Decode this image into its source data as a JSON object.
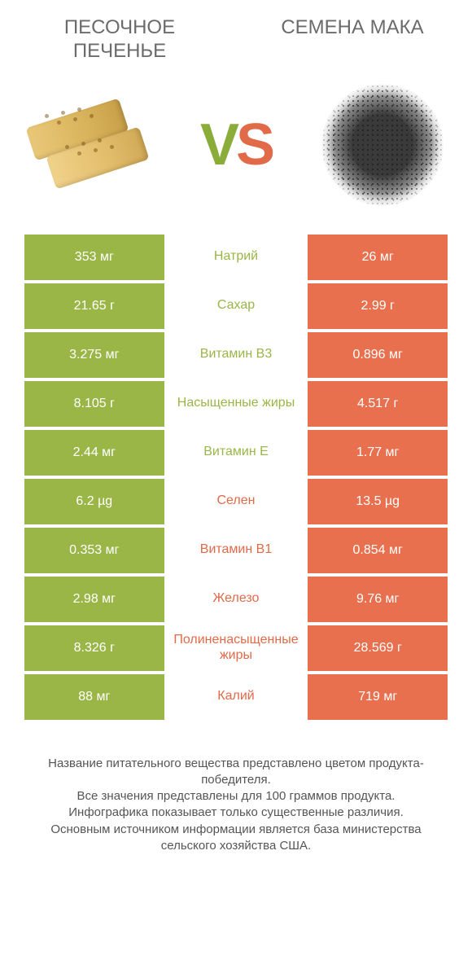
{
  "header": {
    "left_title": "ПЕСОЧНОЕ ПЕЧЕНЬЕ",
    "right_title": "СЕМЕНА МАКА"
  },
  "vs": {
    "v": "V",
    "s": "S"
  },
  "colors": {
    "green": "#99b647",
    "orange": "#e9704e",
    "green_text": "#99b647",
    "orange_text": "#e16a49"
  },
  "rows": [
    {
      "left": "353 мг",
      "label": "Натрий",
      "right": "26 мг",
      "winner": "left"
    },
    {
      "left": "21.65 г",
      "label": "Сахар",
      "right": "2.99 г",
      "winner": "left"
    },
    {
      "left": "3.275 мг",
      "label": "Витамин B3",
      "right": "0.896 мг",
      "winner": "left"
    },
    {
      "left": "8.105 г",
      "label": "Насыщенные жиры",
      "right": "4.517 г",
      "winner": "left"
    },
    {
      "left": "2.44 мг",
      "label": "Витамин E",
      "right": "1.77 мг",
      "winner": "left"
    },
    {
      "left": "6.2 µg",
      "label": "Селен",
      "right": "13.5 µg",
      "winner": "right"
    },
    {
      "left": "0.353 мг",
      "label": "Витамин B1",
      "right": "0.854 мг",
      "winner": "right"
    },
    {
      "left": "2.98 мг",
      "label": "Железо",
      "right": "9.76 мг",
      "winner": "right"
    },
    {
      "left": "8.326 г",
      "label": "Полиненасыщенные жиры",
      "right": "28.569 г",
      "winner": "right"
    },
    {
      "left": "88 мг",
      "label": "Калий",
      "right": "719 мг",
      "winner": "right"
    }
  ],
  "footer": {
    "line1": "Название питательного вещества представлено цветом продукта-победителя.",
    "line2": "Все значения представлены для 100 граммов продукта.",
    "line3": "Инфографика показывает только существенные различия.",
    "line4": "Основным источником информации является база министерства сельского хозяйства США."
  }
}
